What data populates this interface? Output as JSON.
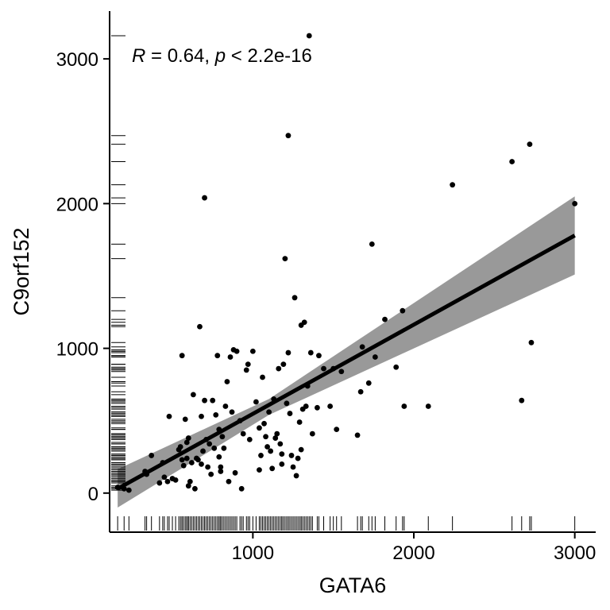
{
  "chart_data": {
    "type": "scatter",
    "xlabel": "GATA6",
    "ylabel": "C9orf152",
    "xlim": [
      110,
      3130
    ],
    "ylim": [
      -270,
      3330
    ],
    "xticks": [
      1000,
      2000,
      3000
    ],
    "yticks": [
      0,
      1000,
      2000,
      3000
    ],
    "grid": false,
    "annotation": {
      "r_symbol": "R",
      "r_text": " = 0.64, ",
      "p_symbol": "p",
      "p_text": " < 2.2e-16"
    },
    "regression": {
      "x": [
        160,
        3000
      ],
      "y": [
        30,
        1780
      ]
    },
    "confidence_band": {
      "x": [
        160,
        1100,
        3000
      ],
      "lower": [
        -100,
        540,
        1510
      ],
      "upper": [
        165,
        650,
        2050
      ]
    },
    "colors": {
      "points": "#000000",
      "line": "#000000",
      "band": "#999999"
    },
    "points": [
      [
        160,
        40
      ],
      [
        200,
        30
      ],
      [
        230,
        20
      ],
      [
        330,
        150
      ],
      [
        340,
        130
      ],
      [
        370,
        260
      ],
      [
        420,
        70
      ],
      [
        440,
        210
      ],
      [
        450,
        110
      ],
      [
        470,
        80
      ],
      [
        480,
        530
      ],
      [
        500,
        100
      ],
      [
        520,
        90
      ],
      [
        540,
        300
      ],
      [
        550,
        320
      ],
      [
        560,
        230
      ],
      [
        560,
        950
      ],
      [
        570,
        190
      ],
      [
        580,
        510
      ],
      [
        590,
        240
      ],
      [
        590,
        350
      ],
      [
        600,
        380
      ],
      [
        600,
        50
      ],
      [
        610,
        80
      ],
      [
        620,
        210
      ],
      [
        630,
        680
      ],
      [
        640,
        30
      ],
      [
        650,
        240
      ],
      [
        660,
        230
      ],
      [
        670,
        1150
      ],
      [
        680,
        530
      ],
      [
        680,
        200
      ],
      [
        690,
        290
      ],
      [
        700,
        2040
      ],
      [
        700,
        640
      ],
      [
        710,
        370
      ],
      [
        720,
        180
      ],
      [
        730,
        340
      ],
      [
        740,
        130
      ],
      [
        750,
        640
      ],
      [
        760,
        310
      ],
      [
        770,
        540
      ],
      [
        780,
        950
      ],
      [
        790,
        440
      ],
      [
        790,
        250
      ],
      [
        800,
        180
      ],
      [
        800,
        150
      ],
      [
        810,
        390
      ],
      [
        820,
        310
      ],
      [
        830,
        600
      ],
      [
        840,
        770
      ],
      [
        850,
        80
      ],
      [
        860,
        940
      ],
      [
        870,
        560
      ],
      [
        880,
        990
      ],
      [
        890,
        140
      ],
      [
        900,
        980
      ],
      [
        920,
        500
      ],
      [
        930,
        30
      ],
      [
        940,
        410
      ],
      [
        960,
        850
      ],
      [
        970,
        890
      ],
      [
        980,
        370
      ],
      [
        1000,
        980
      ],
      [
        1020,
        630
      ],
      [
        1040,
        450
      ],
      [
        1040,
        160
      ],
      [
        1050,
        260
      ],
      [
        1060,
        800
      ],
      [
        1070,
        480
      ],
      [
        1080,
        390
      ],
      [
        1090,
        320
      ],
      [
        1100,
        560
      ],
      [
        1110,
        290
      ],
      [
        1120,
        170
      ],
      [
        1130,
        650
      ],
      [
        1140,
        380
      ],
      [
        1150,
        410
      ],
      [
        1160,
        860
      ],
      [
        1170,
        340
      ],
      [
        1180,
        270
      ],
      [
        1180,
        200
      ],
      [
        1190,
        890
      ],
      [
        1200,
        1620
      ],
      [
        1210,
        620
      ],
      [
        1220,
        2470
      ],
      [
        1220,
        970
      ],
      [
        1230,
        550
      ],
      [
        1240,
        260
      ],
      [
        1250,
        180
      ],
      [
        1260,
        1350
      ],
      [
        1270,
        120
      ],
      [
        1280,
        240
      ],
      [
        1290,
        490
      ],
      [
        1300,
        1160
      ],
      [
        1300,
        300
      ],
      [
        1310,
        580
      ],
      [
        1320,
        1180
      ],
      [
        1330,
        600
      ],
      [
        1340,
        740
      ],
      [
        1350,
        3160
      ],
      [
        1360,
        970
      ],
      [
        1370,
        410
      ],
      [
        1400,
        590
      ],
      [
        1410,
        950
      ],
      [
        1440,
        860
      ],
      [
        1480,
        600
      ],
      [
        1500,
        860
      ],
      [
        1520,
        440
      ],
      [
        1550,
        840
      ],
      [
        1650,
        400
      ],
      [
        1670,
        700
      ],
      [
        1680,
        1010
      ],
      [
        1720,
        760
      ],
      [
        1740,
        1720
      ],
      [
        1760,
        940
      ],
      [
        1820,
        1200
      ],
      [
        1890,
        870
      ],
      [
        1930,
        1260
      ],
      [
        1940,
        600
      ],
      [
        2090,
        600
      ],
      [
        2240,
        2130
      ],
      [
        2610,
        2290
      ],
      [
        2670,
        640
      ],
      [
        2720,
        2410
      ],
      [
        2730,
        1040
      ],
      [
        3000,
        2000
      ]
    ]
  }
}
